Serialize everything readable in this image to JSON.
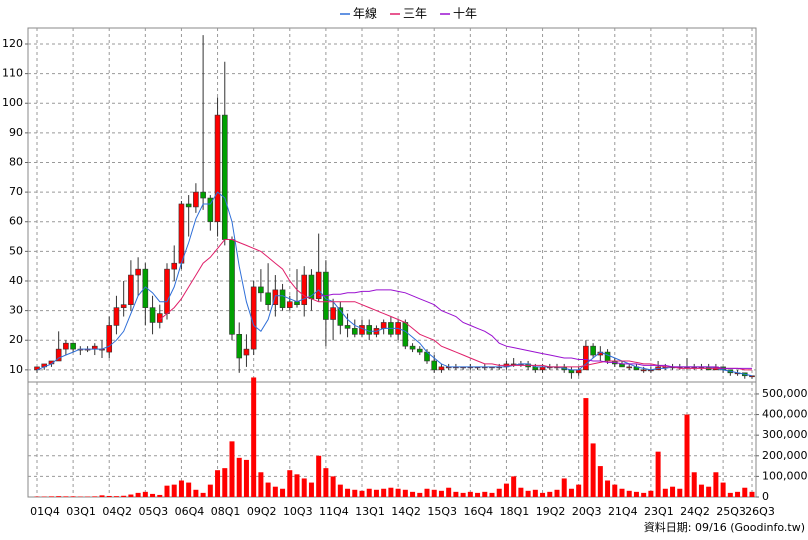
{
  "chart_data": {
    "type": "candlestick",
    "legend": "top",
    "grid": true,
    "up_color": "#ff0000",
    "down_color": "#00a000",
    "volume_color": "#ff0000",
    "source": "資料日期: 09/16 (Goodinfo.tw)",
    "categories": [
      "01Q4",
      null,
      null,
      null,
      null,
      "03Q1",
      null,
      null,
      null,
      null,
      "04Q2",
      null,
      null,
      null,
      null,
      "05Q3",
      null,
      null,
      null,
      null,
      "06Q4",
      null,
      null,
      null,
      null,
      "08Q1",
      null,
      null,
      null,
      null,
      "09Q2",
      null,
      null,
      null,
      null,
      "10Q3",
      null,
      null,
      null,
      null,
      "11Q4",
      null,
      null,
      null,
      null,
      "13Q1",
      null,
      null,
      null,
      null,
      "14Q2",
      null,
      null,
      null,
      null,
      "15Q3",
      null,
      null,
      null,
      null,
      "16Q4",
      null,
      null,
      null,
      null,
      "18Q1",
      null,
      null,
      null,
      null,
      "19Q2",
      null,
      null,
      null,
      null,
      "20Q3",
      null,
      null,
      null,
      null,
      "21Q4",
      null,
      null,
      null,
      null,
      "23Q1",
      null,
      null,
      null,
      null,
      "24Q2",
      null,
      null,
      null,
      null,
      "25Q3",
      null,
      null,
      null,
      "26Q3"
    ],
    "open": [
      10,
      11,
      12,
      13,
      17,
      19,
      17,
      17,
      17,
      17,
      16,
      25,
      31,
      32,
      42,
      44,
      31,
      26,
      29,
      44,
      46,
      66,
      65,
      70,
      68,
      60,
      96,
      54,
      22,
      15,
      17,
      38,
      36,
      32,
      37,
      31,
      33,
      32,
      42,
      34,
      43,
      27,
      31,
      25,
      24,
      22,
      25,
      22,
      24,
      26,
      22,
      26,
      18,
      17,
      16,
      13,
      10,
      11,
      11,
      11,
      11,
      11,
      11,
      11,
      11,
      11,
      12,
      12,
      12,
      11,
      10,
      11,
      11,
      11,
      10,
      9,
      10,
      18,
      15,
      16,
      13,
      12,
      11,
      11,
      10,
      10,
      10,
      11,
      11,
      11,
      11,
      11,
      11,
      11,
      10,
      11,
      10,
      9,
      9,
      8
    ],
    "high": [
      11,
      12,
      13,
      23,
      20,
      19,
      18,
      18,
      19,
      20,
      28,
      35,
      40,
      47,
      48,
      46,
      35,
      32,
      46,
      52,
      67,
      69,
      73,
      123,
      69,
      102,
      114,
      55,
      26,
      22,
      40,
      44,
      46,
      42,
      39,
      35,
      44,
      45,
      44,
      56,
      47,
      34,
      33,
      29,
      27,
      27,
      27,
      25,
      27,
      28,
      27,
      27,
      19,
      18,
      17,
      15,
      12,
      12,
      12,
      11,
      12,
      11,
      12,
      11,
      12,
      13,
      14,
      13,
      13,
      12,
      12,
      12,
      12,
      12,
      11,
      11,
      20,
      19,
      18,
      17,
      14,
      13,
      12,
      12,
      11,
      11,
      13,
      12,
      12,
      12,
      14,
      12,
      12,
      12,
      12,
      11,
      10,
      10,
      9,
      8
    ],
    "low": [
      9,
      10,
      11,
      13,
      15,
      16,
      15,
      16,
      15,
      14,
      14,
      22,
      28,
      30,
      35,
      25,
      22,
      24,
      27,
      40,
      44,
      55,
      63,
      64,
      57,
      55,
      52,
      20,
      9,
      11,
      15,
      33,
      30,
      28,
      30,
      30,
      31,
      28,
      30,
      33,
      18,
      20,
      22,
      21,
      21,
      21,
      20,
      21,
      22,
      21,
      20,
      17,
      16,
      15,
      12,
      9,
      9,
      10,
      10,
      10,
      10,
      10,
      10,
      10,
      10,
      10,
      11,
      11,
      10,
      9,
      9,
      10,
      10,
      9,
      7,
      8,
      10,
      14,
      13,
      12,
      11,
      11,
      10,
      10,
      9,
      9,
      10,
      10,
      10,
      10,
      10,
      10,
      10,
      10,
      10,
      9,
      8,
      8,
      7,
      7
    ],
    "close": [
      11,
      12,
      13,
      17,
      19,
      17,
      17,
      17,
      18,
      17,
      25,
      31,
      32,
      42,
      44,
      31,
      26,
      29,
      44,
      46,
      66,
      65,
      70,
      68,
      60,
      96,
      54,
      22,
      14,
      17,
      38,
      36,
      32,
      37,
      31,
      33,
      32,
      42,
      34,
      43,
      27,
      31,
      25,
      24,
      22,
      25,
      22,
      24,
      26,
      22,
      26,
      18,
      17,
      16,
      13,
      10,
      11,
      11,
      11,
      11,
      11,
      11,
      11,
      11,
      11,
      12,
      12,
      12,
      11,
      10,
      11,
      11,
      11,
      10,
      9,
      10,
      18,
      15,
      16,
      13,
      12,
      11,
      11,
      10,
      10,
      10,
      11,
      11,
      11,
      11,
      11,
      11,
      11,
      10,
      11,
      10,
      9,
      9,
      8,
      8
    ],
    "volume": [
      2000,
      2000,
      3000,
      4000,
      3000,
      3000,
      2000,
      2000,
      3000,
      8000,
      5000,
      4000,
      6000,
      12000,
      20000,
      25000,
      15000,
      10000,
      55000,
      60000,
      80000,
      70000,
      35000,
      20000,
      60000,
      130000,
      140000,
      270000,
      190000,
      180000,
      580000,
      120000,
      70000,
      50000,
      40000,
      130000,
      110000,
      90000,
      70000,
      200000,
      140000,
      100000,
      60000,
      40000,
      35000,
      30000,
      40000,
      35000,
      40000,
      45000,
      40000,
      35000,
      25000,
      20000,
      40000,
      35000,
      30000,
      45000,
      25000,
      20000,
      25000,
      20000,
      25000,
      20000,
      40000,
      65000,
      100000,
      45000,
      30000,
      35000,
      20000,
      25000,
      35000,
      90000,
      40000,
      60000,
      480000,
      260000,
      150000,
      80000,
      60000,
      40000,
      30000,
      25000,
      20000,
      30000,
      220000,
      40000,
      50000,
      40000,
      400000,
      120000,
      60000,
      50000,
      120000,
      70000,
      20000,
      25000,
      45000,
      25000
    ],
    "series": [
      {
        "name": "年線",
        "color": "#2f6fd8",
        "values": [
          10,
          11,
          12,
          14,
          15,
          16,
          17,
          17,
          17,
          17,
          18,
          20,
          23,
          29,
          35,
          38,
          36,
          33,
          33,
          38,
          46,
          53,
          61,
          66,
          66,
          70,
          68,
          60,
          45,
          33,
          25,
          23,
          27,
          35,
          35,
          34,
          33,
          34,
          35,
          37,
          34,
          33,
          30,
          27,
          25,
          24,
          23,
          23,
          24,
          24,
          24,
          23,
          21,
          19,
          16,
          14,
          12,
          11,
          11,
          11,
          11,
          11,
          11,
          11,
          11,
          11,
          11.5,
          12,
          12,
          11,
          11,
          11,
          11,
          10.5,
          10,
          10,
          12,
          14,
          16,
          15,
          14,
          13,
          12,
          11,
          10.5,
          10,
          10.5,
          10.5,
          11,
          11,
          11,
          11,
          11,
          11,
          10.5,
          10,
          9.5,
          9,
          8.5,
          8
        ]
      },
      {
        "name": "三年",
        "color": "#e0206a",
        "values": [
          null,
          null,
          null,
          null,
          null,
          null,
          null,
          null,
          null,
          null,
          null,
          null,
          null,
          null,
          null,
          null,
          null,
          27,
          29,
          31,
          34,
          38,
          42,
          46,
          48,
          51,
          54,
          54,
          53,
          52,
          51,
          50,
          48,
          46,
          44,
          40,
          37,
          35,
          34,
          33,
          33,
          33,
          33,
          33,
          33,
          32,
          31,
          30,
          29,
          28,
          27,
          26,
          24,
          22,
          21,
          20,
          18,
          17,
          16,
          15,
          14,
          13,
          12,
          12,
          11.5,
          11.5,
          11.5,
          11.5,
          11.5,
          11.5,
          11.5,
          11,
          11,
          11,
          11,
          11,
          11.5,
          12,
          12.5,
          13,
          13,
          13,
          13,
          12.5,
          12,
          12,
          11.5,
          11,
          11,
          10.5,
          10.5,
          10.5,
          10.5,
          10.5,
          10.5,
          10.5,
          10.5,
          10.5,
          10,
          10
        ]
      },
      {
        "name": "十年",
        "color": "#9a10d0",
        "values": [
          null,
          null,
          null,
          null,
          null,
          null,
          null,
          null,
          null,
          null,
          null,
          null,
          null,
          null,
          null,
          null,
          null,
          null,
          null,
          null,
          null,
          null,
          null,
          null,
          null,
          null,
          null,
          null,
          null,
          null,
          null,
          null,
          null,
          null,
          null,
          null,
          null,
          null,
          null,
          35,
          35,
          35.5,
          35.5,
          36,
          36,
          36.5,
          36.5,
          37,
          37,
          37,
          36.5,
          36,
          35,
          34,
          33,
          32,
          30,
          29,
          28,
          26,
          25,
          24,
          23,
          21.5,
          19,
          18,
          17.5,
          17,
          16.5,
          16,
          15.5,
          15,
          14.5,
          14,
          14,
          13.5,
          13.5,
          13,
          13,
          12.5,
          12.5,
          12,
          12,
          12,
          11.5,
          11.5,
          11.5,
          11.5,
          11,
          11,
          11,
          11,
          11,
          11,
          11,
          10.5,
          10.5,
          10.5,
          10.5,
          10.5
        ]
      }
    ],
    "ylim": [
      5.9,
      125.4
    ],
    "yticks": [
      10,
      20,
      30,
      40,
      50,
      60,
      70,
      80,
      90,
      100,
      110,
      120
    ],
    "y2lim": [
      0,
      558000
    ],
    "y2ticks": [
      {
        "value": 0,
        "label": "0"
      },
      {
        "value": 100000,
        "label": "100,000"
      },
      {
        "value": 200000,
        "label": "200,000"
      },
      {
        "value": 300000,
        "label": "300,000"
      },
      {
        "value": 400000,
        "label": "400,000"
      },
      {
        "value": 500000,
        "label": "500,000"
      }
    ]
  }
}
